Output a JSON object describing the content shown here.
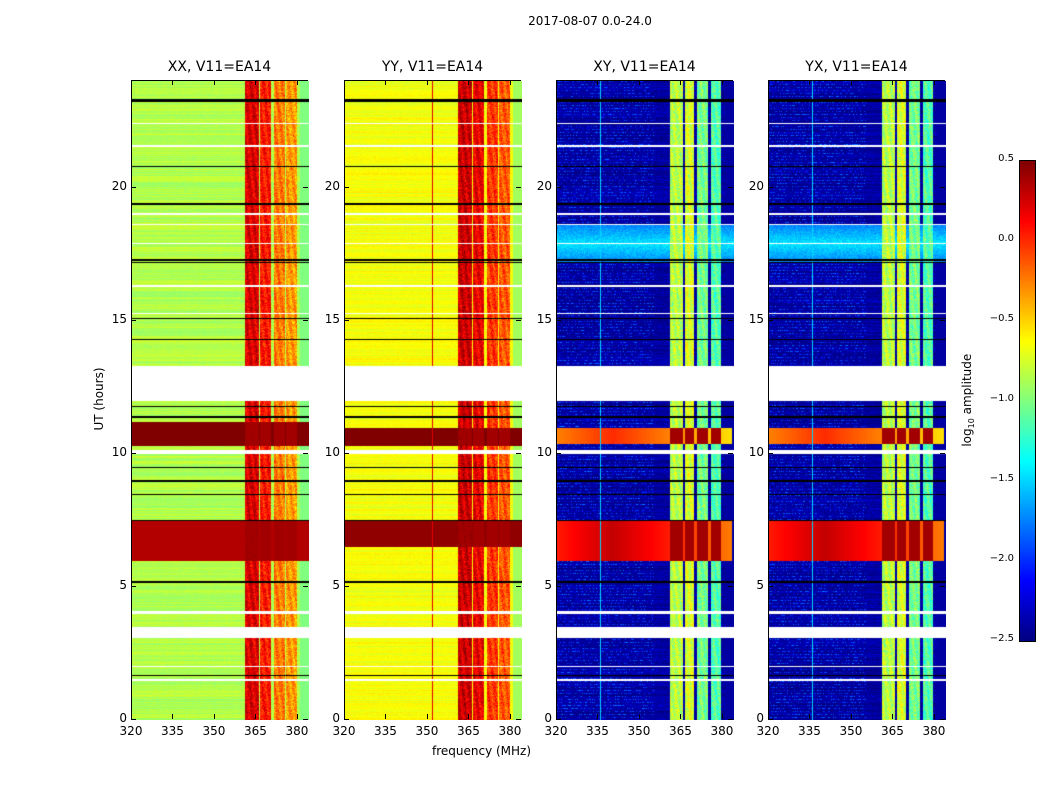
{
  "chart_data": {
    "type": "heatmap",
    "title": "2017-08-07 0.0-24.0",
    "xlabel": "frequency (MHz)",
    "ylabel": "UT (hours)",
    "colorbar": {
      "label": "log10 amplitude",
      "label_main": "log",
      "label_sub": "10",
      "label_rest": " amplitude",
      "range": [
        -2.5,
        0.5
      ],
      "ticks": [
        "0.5",
        "0.0",
        "−0.5",
        "−1.0",
        "−1.5",
        "−2.0",
        "−2.5"
      ],
      "tick_values": [
        0.5,
        0,
        -0.5,
        -1,
        -1.5,
        -2,
        -2.5
      ],
      "colormap": "jet"
    },
    "xlim": [
      320,
      384
    ],
    "ylim": [
      0,
      24
    ],
    "xticks": [
      320,
      335,
      350,
      365,
      380
    ],
    "yticks": [
      0,
      5,
      10,
      15,
      20
    ],
    "flagged_hours": [
      [
        12.0,
        13.3
      ],
      [
        4.0,
        4.1
      ],
      [
        3.1,
        3.5
      ],
      [
        2.0,
        2.06
      ],
      [
        1.5,
        1.56
      ],
      [
        10.0,
        10.15
      ],
      [
        22.4,
        22.45
      ],
      [
        21.55,
        21.6
      ],
      [
        19.0,
        19.06
      ],
      [
        18.6,
        18.66
      ],
      [
        17.9,
        17.95
      ],
      [
        15.25,
        15.3
      ],
      [
        16.3,
        16.35
      ]
    ],
    "black_line_hours": [
      23.25,
      23.3,
      20.8,
      19.4,
      17.3,
      17.2,
      15.1,
      14.3,
      11.8,
      11.4,
      9.5,
      9.0,
      8.5,
      7.5,
      5.2,
      1.7
    ],
    "panels": [
      {
        "title": "XX, V11=EA14",
        "base": -0.85,
        "edge_value": -1.0,
        "columns": [
          [
            360.5,
            365.8,
            0.15
          ],
          [
            366.2,
            370,
            0.0
          ],
          [
            371,
            375,
            -0.3
          ],
          [
            375.6,
            379.6,
            -0.4
          ]
        ],
        "row_bands": [
          [
            10.3,
            11.2,
            0.5
          ],
          [
            6.0,
            7.5,
            0.35
          ]
        ],
        "cyan_band": null,
        "vlines": []
      },
      {
        "title": "YY, V11=EA14",
        "base": -0.65,
        "edge_value": -0.9,
        "columns": [
          [
            360.5,
            365.8,
            0.2
          ],
          [
            366.2,
            370,
            0.1
          ],
          [
            371,
            375,
            -0.1
          ],
          [
            375.6,
            379.6,
            -0.2
          ]
        ],
        "row_bands": [
          [
            10.3,
            11.0,
            0.5
          ],
          [
            6.5,
            7.5,
            0.45
          ],
          [
            6.6,
            6.75,
            0.2
          ]
        ],
        "cyan_band": null,
        "vlines": [
          [
            351.5,
            0.2
          ]
        ]
      },
      {
        "title": "XY, V11=EA14",
        "base": -2.4,
        "edge_value": -2.4,
        "columns": [
          [
            360.5,
            365.5,
            -0.9
          ],
          [
            366.2,
            369.5,
            -0.8
          ],
          [
            370.5,
            374.5,
            -1.1
          ],
          [
            375.6,
            379.2,
            -1.2
          ]
        ],
        "row_bands": [
          [
            10.4,
            11.0,
            0.0
          ],
          [
            6.0,
            7.5,
            0.3
          ]
        ],
        "cyan_band": [
          17.2,
          18.6,
          -1.45
        ],
        "vlines": [
          [
            335.5,
            -1.5
          ]
        ]
      },
      {
        "title": "YX, V11=EA14",
        "base": -2.4,
        "edge_value": -2.4,
        "columns": [
          [
            360.5,
            365.5,
            -0.9
          ],
          [
            366.2,
            369.5,
            -0.8
          ],
          [
            370.5,
            374.5,
            -1.1
          ],
          [
            375.6,
            379.2,
            -1.2
          ]
        ],
        "row_bands": [
          [
            10.4,
            11.0,
            0.0
          ],
          [
            6.0,
            7.5,
            0.3
          ]
        ],
        "cyan_band": [
          17.2,
          18.6,
          -1.45
        ],
        "vlines": [
          [
            335.5,
            -1.5
          ]
        ]
      }
    ]
  }
}
